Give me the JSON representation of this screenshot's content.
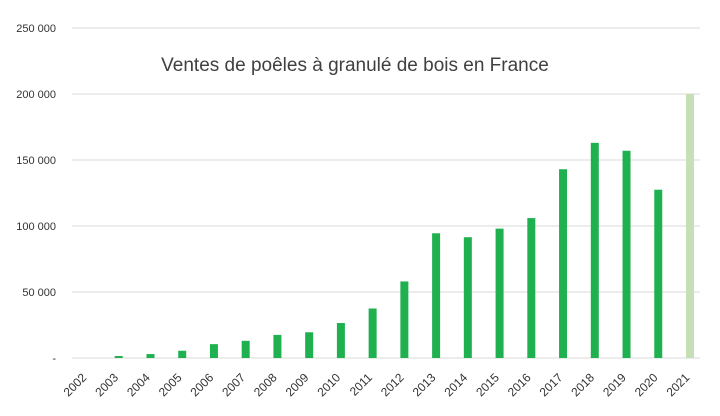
{
  "chart_data": {
    "type": "bar",
    "title": "Ventes de poêles à granulé de bois en France",
    "xlabel": "",
    "ylabel": "",
    "ylim": [
      0,
      250000
    ],
    "yticks": [
      {
        "value": 0,
        "label": "-"
      },
      {
        "value": 50000,
        "label": "50 000"
      },
      {
        "value": 100000,
        "label": "100 000"
      },
      {
        "value": 150000,
        "label": "150 000"
      },
      {
        "value": 200000,
        "label": "200 000"
      },
      {
        "value": 250000,
        "label": "250 000"
      }
    ],
    "grid": true,
    "categories": [
      "2002",
      "2003",
      "2004",
      "2005",
      "2006",
      "2007",
      "2008",
      "2009",
      "2010",
      "2011",
      "2012",
      "2013",
      "2014",
      "2015",
      "2016",
      "2017",
      "2018",
      "2019",
      "2020",
      "2021"
    ],
    "values": [
      0,
      1500,
      3000,
      5500,
      10500,
      13000,
      17500,
      19500,
      26500,
      37500,
      58000,
      94500,
      91500,
      98000,
      106000,
      143000,
      163000,
      157000,
      127500,
      200000
    ],
    "colors": {
      "bar": "#1fb150",
      "highlight_bar": "#c5e0b4",
      "grid": "#d9d9d9",
      "text": "#333333"
    },
    "highlight_category": "2021"
  }
}
